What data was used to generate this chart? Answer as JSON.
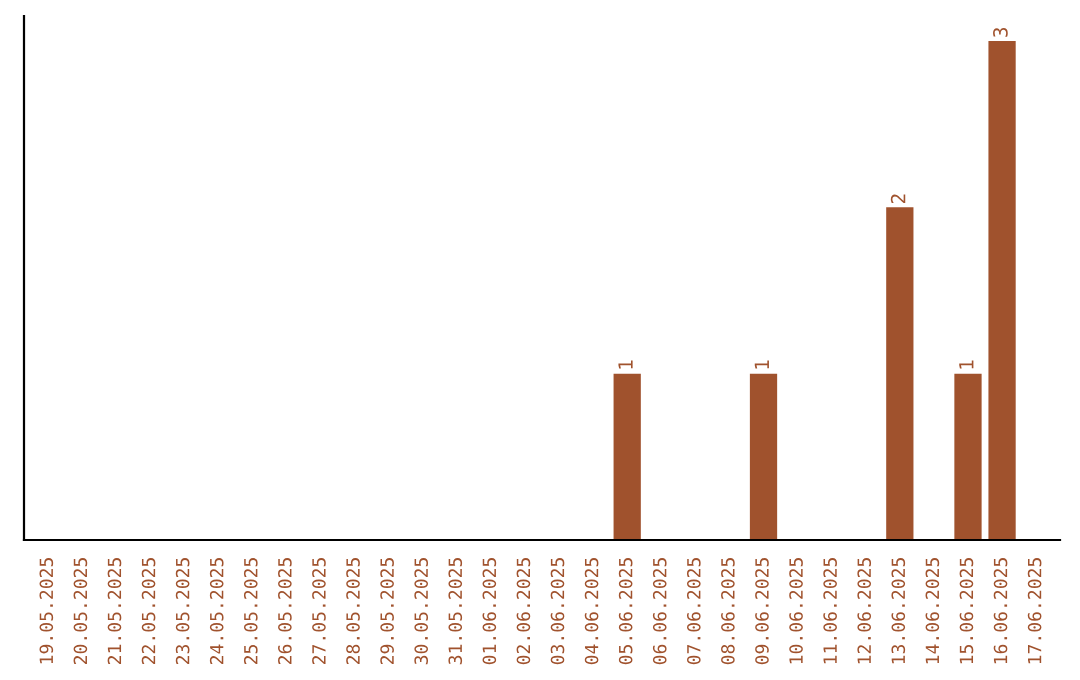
{
  "chart_data": {
    "type": "bar",
    "categories": [
      "19.05.2025",
      "20.05.2025",
      "21.05.2025",
      "22.05.2025",
      "23.05.2025",
      "24.05.2025",
      "25.05.2025",
      "26.05.2025",
      "27.05.2025",
      "28.05.2025",
      "29.05.2025",
      "30.05.2025",
      "31.05.2025",
      "01.06.2025",
      "02.06.2025",
      "03.06.2025",
      "04.06.2025",
      "05.06.2025",
      "06.06.2025",
      "07.06.2025",
      "08.06.2025",
      "09.06.2025",
      "10.06.2025",
      "11.06.2025",
      "12.06.2025",
      "13.06.2025",
      "14.06.2025",
      "15.06.2025",
      "16.06.2025",
      "17.06.2025"
    ],
    "values": [
      null,
      null,
      null,
      null,
      null,
      null,
      null,
      null,
      null,
      null,
      null,
      null,
      null,
      null,
      null,
      null,
      null,
      1,
      null,
      null,
      null,
      1,
      null,
      null,
      null,
      2,
      null,
      1,
      3,
      null
    ],
    "data_labels": true,
    "color": "#a0522d",
    "grid": false,
    "legend": false
  }
}
